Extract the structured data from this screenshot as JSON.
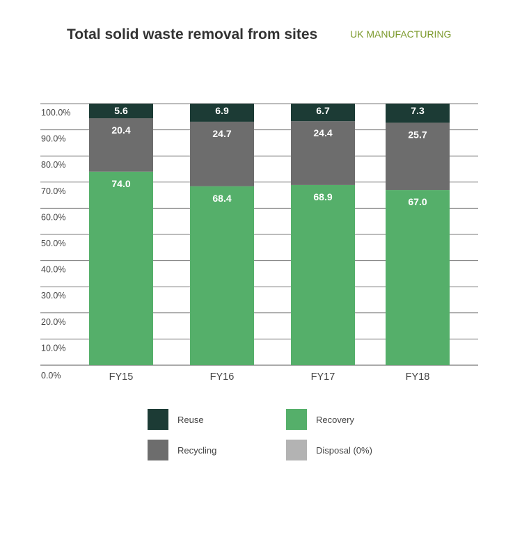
{
  "header": {
    "title": "Total solid waste removal from sites",
    "subtitle": "UK MANUFACTURING"
  },
  "chart_data": {
    "type": "bar",
    "stacked": true,
    "categories": [
      "FY15",
      "FY16",
      "FY17",
      "FY18"
    ],
    "series": [
      {
        "name": "Disposal (0%)",
        "values": [
          0.0,
          0.0,
          0.0,
          0.0
        ],
        "labels": [
          "0.0",
          "0.0",
          "0.0",
          "0.0"
        ],
        "color": "#b3b3b3"
      },
      {
        "name": "Recovery",
        "values": [
          74.0,
          68.4,
          68.9,
          67.0
        ],
        "labels": [
          "74.0",
          "68.4",
          "68.9",
          "67.0"
        ],
        "color": "#55af6a"
      },
      {
        "name": "Recycling",
        "values": [
          20.4,
          24.7,
          24.4,
          25.7
        ],
        "labels": [
          "20.4",
          "24.7",
          "24.4",
          "25.7"
        ],
        "color": "#6d6d6d"
      },
      {
        "name": "Reuse",
        "values": [
          5.6,
          6.9,
          6.7,
          7.3
        ],
        "labels": [
          "5.6",
          "6.9",
          "6.7",
          "7.3"
        ],
        "color": "#1c3b35"
      }
    ],
    "ylim": [
      0,
      100
    ],
    "yticks": [
      "0.0%",
      "10.0%",
      "20.0%",
      "30.0%",
      "40.0%",
      "50.0%",
      "60.0%",
      "70.0%",
      "80.0%",
      "90.0%",
      "100.0%"
    ],
    "grid": true,
    "legend_position": "bottom"
  },
  "legend": [
    {
      "label": "Reuse",
      "color": "#1c3b35"
    },
    {
      "label": "Recovery",
      "color": "#55af6a"
    },
    {
      "label": "Recycling",
      "color": "#6d6d6d"
    },
    {
      "label": "Disposal (0%)",
      "color": "#b3b3b3"
    }
  ]
}
